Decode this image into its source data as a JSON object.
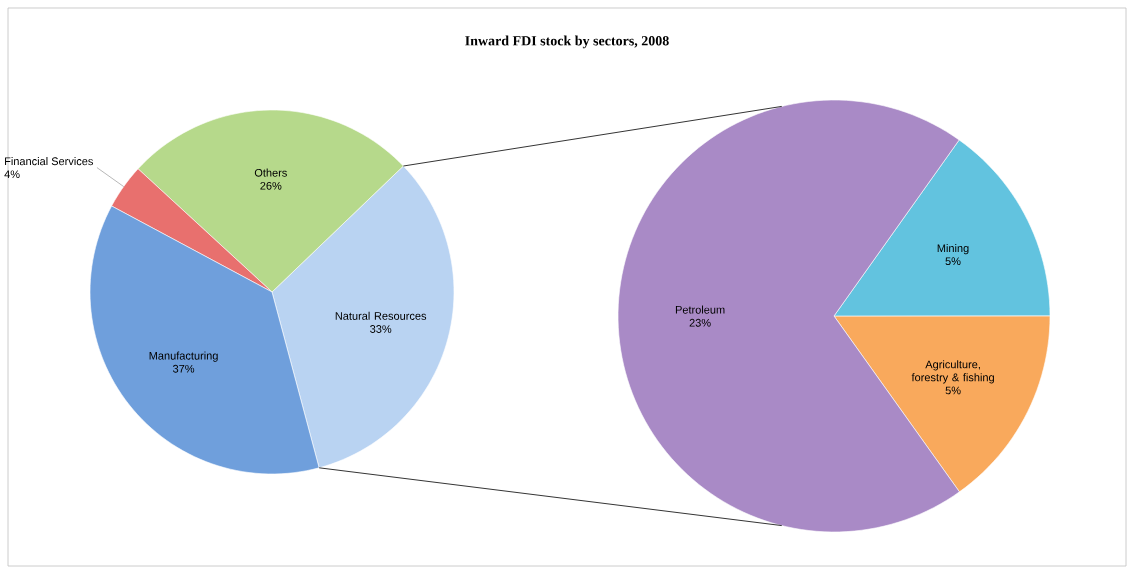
{
  "chart_data": [
    {
      "type": "pie",
      "title": "Inward FDI stock by sectors, 2008",
      "categories": [
        "Natural Resources",
        "Others",
        "Financial Services",
        "Manufacturing"
      ],
      "values": [
        33,
        26,
        4,
        37
      ],
      "value_labels": [
        "33%",
        "26%",
        "4%",
        "37%"
      ],
      "colors": [
        "#b9d3f2",
        "#b6d98b",
        "#e8706e",
        "#6f9fdc"
      ]
    },
    {
      "type": "pie",
      "categories": [
        "Agriculture, forestry & fishing",
        "Mining",
        "Petroleum"
      ],
      "values": [
        5,
        5,
        23
      ],
      "value_labels": [
        "5%",
        "5%",
        "23%"
      ],
      "colors": [
        "#f9a95c",
        "#62c3df",
        "#a98ac6"
      ]
    }
  ]
}
